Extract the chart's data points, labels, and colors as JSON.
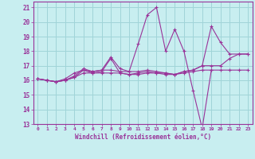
{
  "xlabel": "Windchill (Refroidissement éolien,°C)",
  "background_color": "#c8eef0",
  "grid_color": "#a0d4d8",
  "line_color": "#993399",
  "xlim": [
    -0.5,
    23.5
  ],
  "ylim": [
    13,
    21.4
  ],
  "xticks": [
    0,
    1,
    2,
    3,
    4,
    5,
    6,
    7,
    8,
    9,
    10,
    11,
    12,
    13,
    14,
    15,
    16,
    17,
    18,
    19,
    20,
    21,
    22,
    23
  ],
  "yticks": [
    13,
    14,
    15,
    16,
    17,
    18,
    19,
    20,
    21
  ],
  "series": [
    [
      16.1,
      16.0,
      15.9,
      16.0,
      16.2,
      16.7,
      16.5,
      16.6,
      17.5,
      16.5,
      16.4,
      16.5,
      16.6,
      16.5,
      16.5,
      16.4,
      16.6,
      16.7,
      17.0,
      19.7,
      18.6,
      17.8,
      17.8,
      17.8
    ],
    [
      16.1,
      16.0,
      15.9,
      16.0,
      16.3,
      16.8,
      16.6,
      16.7,
      17.6,
      16.8,
      16.6,
      18.5,
      20.5,
      21.0,
      18.0,
      19.5,
      18.0,
      15.3,
      12.7,
      16.7,
      null,
      null,
      null,
      null
    ],
    [
      16.1,
      16.0,
      15.9,
      16.1,
      16.5,
      16.7,
      16.6,
      16.7,
      16.7,
      16.6,
      16.6,
      16.6,
      16.7,
      16.6,
      16.5,
      16.4,
      16.6,
      16.7,
      17.0,
      17.0,
      17.0,
      17.5,
      17.8,
      17.8
    ],
    [
      16.1,
      16.0,
      15.9,
      16.0,
      16.2,
      16.5,
      16.5,
      16.5,
      16.5,
      16.5,
      16.4,
      16.4,
      16.5,
      16.5,
      16.4,
      16.4,
      16.5,
      16.6,
      16.7,
      16.7,
      16.7,
      16.7,
      16.7,
      16.7
    ]
  ]
}
